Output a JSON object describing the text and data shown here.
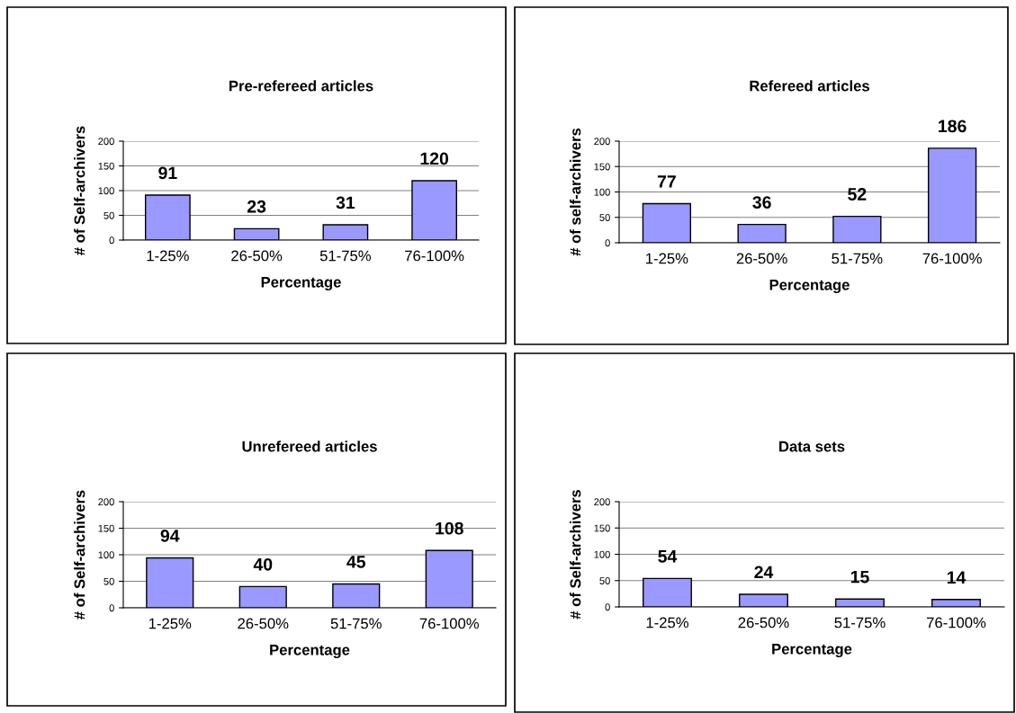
{
  "chart_data": [
    {
      "type": "bar",
      "title": "Pre-refereed articles",
      "xlabel": "Percentage",
      "ylabel": "# of Self-archivers",
      "categories": [
        "1-25%",
        "26-50%",
        "51-75%",
        "76-100%"
      ],
      "values": [
        91,
        23,
        31,
        120
      ],
      "color": "#9999ff",
      "ylim": [
        0,
        200
      ],
      "yticks": [
        0,
        50,
        100,
        150,
        200
      ],
      "grid": "y",
      "data_labels": true
    },
    {
      "type": "bar",
      "title": "Refereed articles",
      "xlabel": "Percentage",
      "ylabel": "# of self-archivers",
      "categories": [
        "1-25%",
        "26-50%",
        "51-75%",
        "76-100%"
      ],
      "values": [
        77,
        36,
        52,
        186
      ],
      "color": "#9999ff",
      "ylim": [
        0,
        200
      ],
      "yticks": [
        0,
        50,
        100,
        150,
        200
      ],
      "grid": "y",
      "data_labels": true
    },
    {
      "type": "bar",
      "title": "Unrefereed articles",
      "xlabel": "Percentage",
      "ylabel": "# of Self-archivers",
      "categories": [
        "1-25%",
        "26-50%",
        "51-75%",
        "76-100%"
      ],
      "values": [
        94,
        40,
        45,
        108
      ],
      "color": "#9999ff",
      "ylim": [
        0,
        200
      ],
      "yticks": [
        0,
        50,
        100,
        150,
        200
      ],
      "grid": "y",
      "data_labels": true
    },
    {
      "type": "bar",
      "title": "Data sets",
      "xlabel": "Percentage",
      "ylabel": "# of Self-archivers",
      "categories": [
        "1-25%",
        "26-50%",
        "51-75%",
        "76-100%"
      ],
      "values": [
        54,
        24,
        15,
        14
      ],
      "color": "#9999ff",
      "ylim": [
        0,
        200
      ],
      "yticks": [
        0,
        50,
        100,
        150,
        200
      ],
      "grid": "y",
      "data_labels": true
    }
  ]
}
